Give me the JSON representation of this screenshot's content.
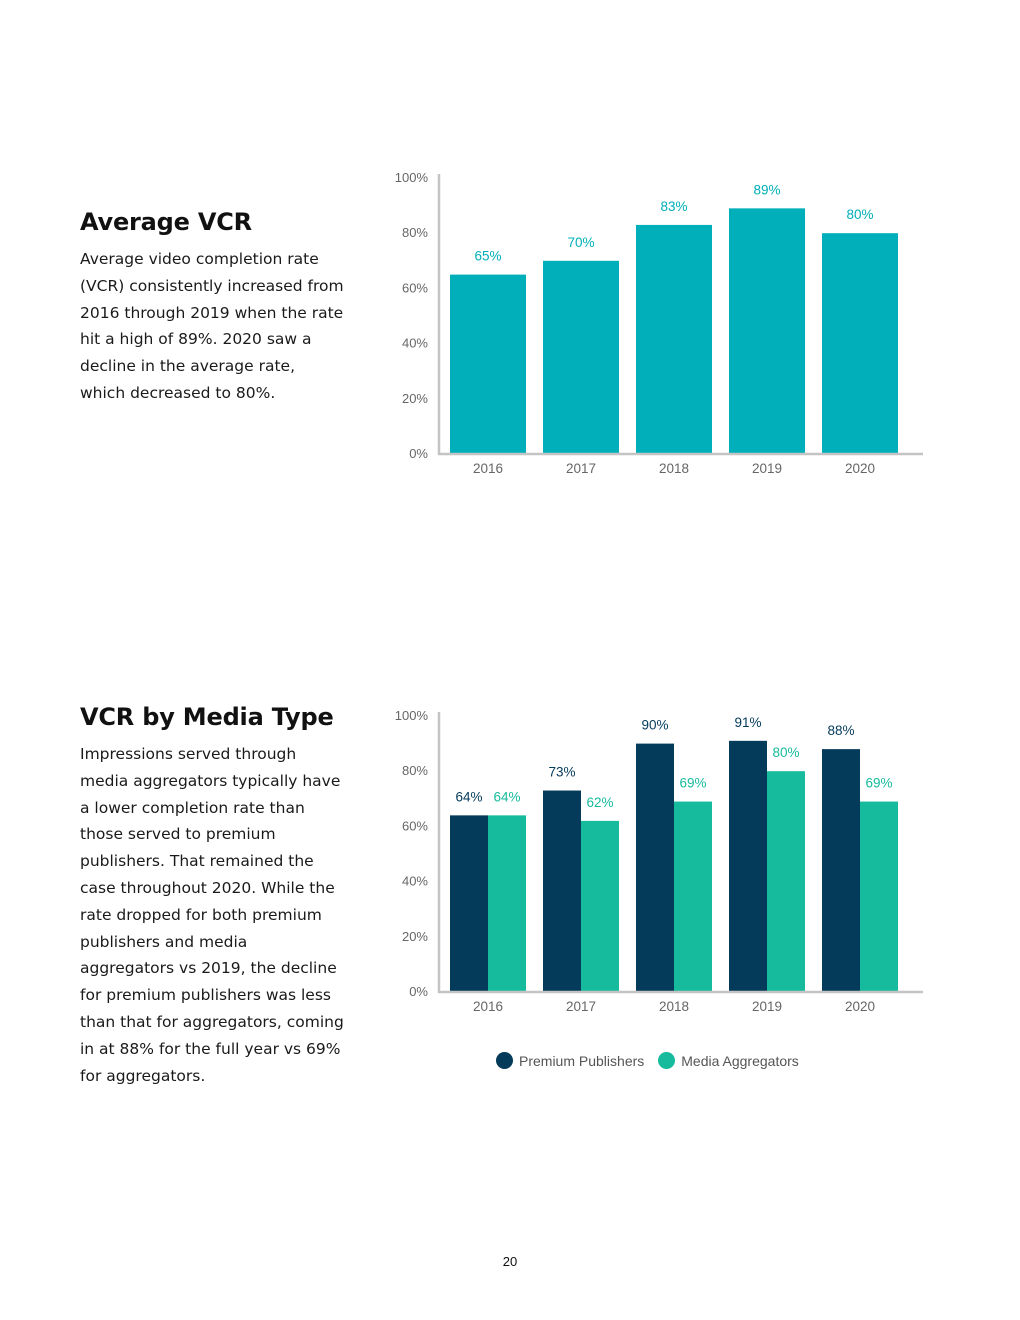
{
  "sections": {
    "avg": {
      "title": "Average VCR",
      "text": "Average video completion rate (VCR) consistently increased from 2016 through 2019 when the rate hit a high of 89%. 2020 saw a decline in the average rate, which decreased to 80%."
    },
    "media": {
      "title": "VCR by Media Type",
      "text": "Impressions served through media aggregators typically have a lower completion rate than those served to premium publishers. That remained the case throughout 2020. While the rate dropped for both premium publishers and media aggregators vs 2019, the decline for premium publishers was less than that for aggregators, coming in at 88% for the full year vs 69% for aggregators."
    }
  },
  "page_number": "20",
  "colors": {
    "teal": "#00afb9",
    "navy": "#043a5a",
    "green": "#16bb9d",
    "axis": "#c4c4c4",
    "tick": "#666666"
  },
  "chart_data": [
    {
      "type": "bar",
      "title": "Average VCR",
      "xlabel": "",
      "ylabel": "",
      "categories": [
        "2016",
        "2017",
        "2018",
        "2019",
        "2020"
      ],
      "series": [
        {
          "name": "Average VCR",
          "values": [
            65,
            70,
            83,
            89,
            80
          ],
          "color": "#00afb9",
          "labels": [
            "65%",
            "70%",
            "83%",
            "89%",
            "80%"
          ]
        }
      ],
      "ylim": [
        0,
        100
      ],
      "yticks": [
        "0%",
        "20%",
        "40%",
        "60%",
        "80%",
        "100%"
      ],
      "legend": "none"
    },
    {
      "type": "bar",
      "title": "VCR by Media Type",
      "xlabel": "",
      "ylabel": "",
      "categories": [
        "2016",
        "2017",
        "2018",
        "2019",
        "2020"
      ],
      "series": [
        {
          "name": "Premium Publishers",
          "values": [
            64,
            73,
            90,
            91,
            88
          ],
          "color": "#043a5a",
          "labels": [
            "64%",
            "73%",
            "90%",
            "91%",
            "88%"
          ]
        },
        {
          "name": "Media Aggregators",
          "values": [
            64,
            62,
            69,
            80,
            69
          ],
          "color": "#16bb9d",
          "labels": [
            "64%",
            "62%",
            "69%",
            "80%",
            "69%"
          ]
        }
      ],
      "ylim": [
        0,
        100
      ],
      "yticks": [
        "0%",
        "20%",
        "40%",
        "60%",
        "80%",
        "100%"
      ],
      "legend": "bottom"
    }
  ]
}
